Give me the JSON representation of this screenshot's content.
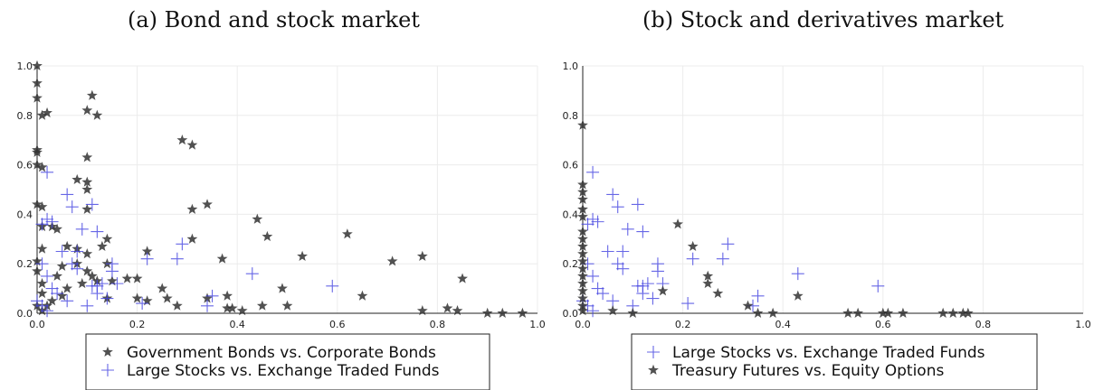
{
  "chart_data": [
    {
      "type": "scatter",
      "title": "(a) Bond and stock market",
      "xlim": [
        0,
        1
      ],
      "ylim": [
        0,
        1
      ],
      "xticks": [
        "0.0",
        "0.2",
        "0.4",
        "0.6",
        "0.8",
        "1.0"
      ],
      "yticks": [
        "0.0",
        "0.2",
        "0.4",
        "0.6",
        "0.8",
        "1.0"
      ],
      "grid": true,
      "legend_position": "bottom-center",
      "series": [
        {
          "name": "Government Bonds vs. Corporate Bonds",
          "marker": "star",
          "color": "#333333",
          "points": [
            [
              0.0,
              1.0
            ],
            [
              0.0,
              0.93
            ],
            [
              0.0,
              0.87
            ],
            [
              0.0,
              0.66
            ],
            [
              0.0,
              0.65
            ],
            [
              0.0,
              0.6
            ],
            [
              0.01,
              0.59
            ],
            [
              0.0,
              0.44
            ],
            [
              0.01,
              0.43
            ],
            [
              0.01,
              0.35
            ],
            [
              0.01,
              0.26
            ],
            [
              0.0,
              0.21
            ],
            [
              0.0,
              0.17
            ],
            [
              0.01,
              0.12
            ],
            [
              0.01,
              0.08
            ],
            [
              0.0,
              0.03
            ],
            [
              0.01,
              0.01
            ],
            [
              0.01,
              0.8
            ],
            [
              0.02,
              0.81
            ],
            [
              0.11,
              0.88
            ],
            [
              0.1,
              0.82
            ],
            [
              0.12,
              0.8
            ],
            [
              0.1,
              0.63
            ],
            [
              0.08,
              0.54
            ],
            [
              0.1,
              0.53
            ],
            [
              0.1,
              0.5
            ],
            [
              0.1,
              0.42
            ],
            [
              0.04,
              0.34
            ],
            [
              0.03,
              0.35
            ],
            [
              0.06,
              0.27
            ],
            [
              0.08,
              0.26
            ],
            [
              0.1,
              0.24
            ],
            [
              0.08,
              0.2
            ],
            [
              0.1,
              0.17
            ],
            [
              0.11,
              0.15
            ],
            [
              0.12,
              0.13
            ],
            [
              0.09,
              0.12
            ],
            [
              0.06,
              0.1
            ],
            [
              0.05,
              0.07
            ],
            [
              0.03,
              0.05
            ],
            [
              0.02,
              0.03
            ],
            [
              0.04,
              0.15
            ],
            [
              0.05,
              0.19
            ],
            [
              0.14,
              0.3
            ],
            [
              0.13,
              0.27
            ],
            [
              0.14,
              0.2
            ],
            [
              0.15,
              0.13
            ],
            [
              0.14,
              0.06
            ],
            [
              0.18,
              0.14
            ],
            [
              0.2,
              0.14
            ],
            [
              0.2,
              0.06
            ],
            [
              0.22,
              0.25
            ],
            [
              0.22,
              0.05
            ],
            [
              0.25,
              0.1
            ],
            [
              0.26,
              0.06
            ],
            [
              0.28,
              0.03
            ],
            [
              0.29,
              0.7
            ],
            [
              0.31,
              0.68
            ],
            [
              0.31,
              0.42
            ],
            [
              0.34,
              0.44
            ],
            [
              0.31,
              0.3
            ],
            [
              0.37,
              0.22
            ],
            [
              0.34,
              0.06
            ],
            [
              0.38,
              0.07
            ],
            [
              0.38,
              0.02
            ],
            [
              0.39,
              0.02
            ],
            [
              0.41,
              0.01
            ],
            [
              0.44,
              0.38
            ],
            [
              0.46,
              0.31
            ],
            [
              0.45,
              0.03
            ],
            [
              0.49,
              0.1
            ],
            [
              0.5,
              0.03
            ],
            [
              0.53,
              0.23
            ],
            [
              0.62,
              0.32
            ],
            [
              0.65,
              0.07
            ],
            [
              0.71,
              0.21
            ],
            [
              0.77,
              0.23
            ],
            [
              0.77,
              0.01
            ],
            [
              0.82,
              0.02
            ],
            [
              0.84,
              0.01
            ],
            [
              0.85,
              0.14
            ],
            [
              0.9,
              0.0
            ],
            [
              0.93,
              0.0
            ],
            [
              0.97,
              0.0
            ]
          ]
        },
        {
          "name": "Large Stocks vs. Exchange Traded Funds",
          "marker": "plus",
          "color": "#4040e0",
          "points": [
            [
              0.02,
              0.57
            ],
            [
              0.06,
              0.48
            ],
            [
              0.07,
              0.43
            ],
            [
              0.11,
              0.44
            ],
            [
              0.09,
              0.34
            ],
            [
              0.12,
              0.33
            ],
            [
              0.03,
              0.37
            ],
            [
              0.01,
              0.36
            ],
            [
              0.02,
              0.38
            ],
            [
              0.05,
              0.25
            ],
            [
              0.08,
              0.25
            ],
            [
              0.07,
              0.2
            ],
            [
              0.08,
              0.18
            ],
            [
              0.11,
              0.11
            ],
            [
              0.12,
              0.11
            ],
            [
              0.13,
              0.12
            ],
            [
              0.15,
              0.17
            ],
            [
              0.15,
              0.2
            ],
            [
              0.12,
              0.08
            ],
            [
              0.14,
              0.06
            ],
            [
              0.16,
              0.12
            ],
            [
              0.21,
              0.04
            ],
            [
              0.22,
              0.22
            ],
            [
              0.28,
              0.22
            ],
            [
              0.29,
              0.28
            ],
            [
              0.35,
              0.07
            ],
            [
              0.34,
              0.03
            ],
            [
              0.43,
              0.16
            ],
            [
              0.59,
              0.11
            ],
            [
              0.01,
              0.2
            ],
            [
              0.02,
              0.15
            ],
            [
              0.0,
              0.05
            ],
            [
              0.01,
              0.03
            ],
            [
              0.03,
              0.1
            ],
            [
              0.04,
              0.08
            ],
            [
              0.06,
              0.05
            ],
            [
              0.1,
              0.03
            ],
            [
              0.02,
              0.01
            ]
          ]
        }
      ]
    },
    {
      "type": "scatter",
      "title": "(b) Stock and derivatives market",
      "xlim": [
        0,
        1
      ],
      "ylim": [
        0,
        1
      ],
      "xticks": [
        "0.0",
        "0.2",
        "0.4",
        "0.6",
        "0.8",
        "1.0"
      ],
      "yticks": [
        "0.0",
        "0.2",
        "0.4",
        "0.6",
        "0.8",
        "1.0"
      ],
      "grid": true,
      "legend_position": "bottom-center",
      "series": [
        {
          "name": "Large Stocks vs. Exchange Traded Funds",
          "marker": "plus",
          "color": "#4040e0",
          "points": [
            [
              0.02,
              0.57
            ],
            [
              0.06,
              0.48
            ],
            [
              0.07,
              0.43
            ],
            [
              0.11,
              0.44
            ],
            [
              0.09,
              0.34
            ],
            [
              0.12,
              0.33
            ],
            [
              0.03,
              0.37
            ],
            [
              0.01,
              0.36
            ],
            [
              0.02,
              0.38
            ],
            [
              0.05,
              0.25
            ],
            [
              0.08,
              0.25
            ],
            [
              0.07,
              0.2
            ],
            [
              0.08,
              0.18
            ],
            [
              0.11,
              0.11
            ],
            [
              0.12,
              0.11
            ],
            [
              0.13,
              0.12
            ],
            [
              0.15,
              0.17
            ],
            [
              0.15,
              0.2
            ],
            [
              0.12,
              0.08
            ],
            [
              0.14,
              0.06
            ],
            [
              0.16,
              0.12
            ],
            [
              0.21,
              0.04
            ],
            [
              0.22,
              0.22
            ],
            [
              0.28,
              0.22
            ],
            [
              0.29,
              0.28
            ],
            [
              0.35,
              0.07
            ],
            [
              0.34,
              0.03
            ],
            [
              0.43,
              0.16
            ],
            [
              0.59,
              0.11
            ],
            [
              0.01,
              0.2
            ],
            [
              0.02,
              0.15
            ],
            [
              0.0,
              0.05
            ],
            [
              0.01,
              0.03
            ],
            [
              0.03,
              0.1
            ],
            [
              0.04,
              0.08
            ],
            [
              0.06,
              0.05
            ],
            [
              0.1,
              0.03
            ],
            [
              0.02,
              0.01
            ]
          ]
        },
        {
          "name": "Treasury Futures vs. Equity Options",
          "marker": "star",
          "color": "#333333",
          "points": [
            [
              0.0,
              0.76
            ],
            [
              0.0,
              0.52
            ],
            [
              0.0,
              0.49
            ],
            [
              0.0,
              0.46
            ],
            [
              0.0,
              0.42
            ],
            [
              0.0,
              0.39
            ],
            [
              0.0,
              0.33
            ],
            [
              0.0,
              0.3
            ],
            [
              0.0,
              0.27
            ],
            [
              0.0,
              0.24
            ],
            [
              0.0,
              0.21
            ],
            [
              0.0,
              0.18
            ],
            [
              0.0,
              0.15
            ],
            [
              0.0,
              0.12
            ],
            [
              0.0,
              0.09
            ],
            [
              0.0,
              0.06
            ],
            [
              0.0,
              0.03
            ],
            [
              0.0,
              0.01
            ],
            [
              0.19,
              0.36
            ],
            [
              0.22,
              0.27
            ],
            [
              0.25,
              0.15
            ],
            [
              0.25,
              0.12
            ],
            [
              0.27,
              0.08
            ],
            [
              0.16,
              0.09
            ],
            [
              0.33,
              0.03
            ],
            [
              0.43,
              0.07
            ],
            [
              0.35,
              0.0
            ],
            [
              0.38,
              0.0
            ],
            [
              0.53,
              0.0
            ],
            [
              0.55,
              0.0
            ],
            [
              0.6,
              0.0
            ],
            [
              0.61,
              0.0
            ],
            [
              0.64,
              0.0
            ],
            [
              0.72,
              0.0
            ],
            [
              0.74,
              0.0
            ],
            [
              0.76,
              0.0
            ],
            [
              0.77,
              0.0
            ],
            [
              0.06,
              0.01
            ],
            [
              0.1,
              0.0
            ]
          ]
        }
      ]
    }
  ]
}
